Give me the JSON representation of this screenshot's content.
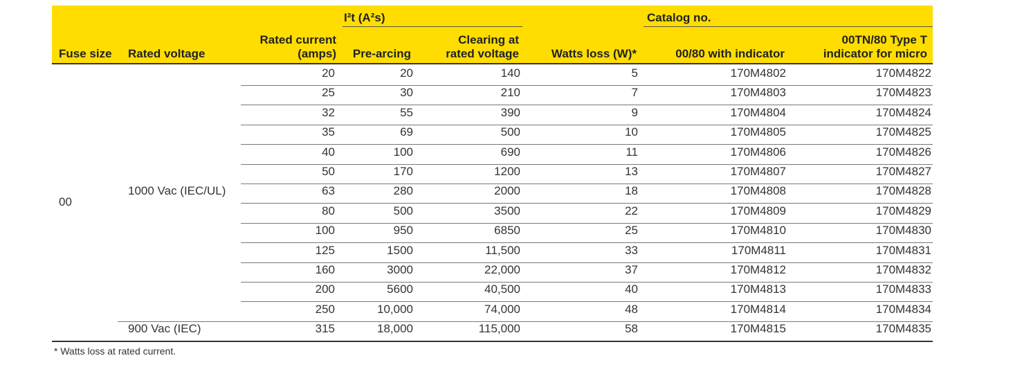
{
  "header": {
    "groups": [
      "I²t (A²s)",
      "Catalog no."
    ],
    "columns": [
      "Fuse size",
      "Rated voltage",
      "Rated current\n(amps)",
      "Pre-arcing",
      "Clearing at\nrated voltage",
      "Watts loss (W)*",
      "00/80 with indicator",
      "00TN/80 Type T\nindicator for micro"
    ]
  },
  "fuse_size": "00",
  "voltages": [
    "1000 Vac (IEC/UL)",
    "900 Vac (IEC)"
  ],
  "rows": [
    [
      "20",
      "20",
      "140",
      "5",
      "170M4802",
      "170M4822"
    ],
    [
      "25",
      "30",
      "210",
      "7",
      "170M4803",
      "170M4823"
    ],
    [
      "32",
      "55",
      "390",
      "9",
      "170M4804",
      "170M4824"
    ],
    [
      "35",
      "69",
      "500",
      "10",
      "170M4805",
      "170M4825"
    ],
    [
      "40",
      "100",
      "690",
      "11",
      "170M4806",
      "170M4826"
    ],
    [
      "50",
      "170",
      "1200",
      "13",
      "170M4807",
      "170M4827"
    ],
    [
      "63",
      "280",
      "2000",
      "18",
      "170M4808",
      "170M4828"
    ],
    [
      "80",
      "500",
      "3500",
      "22",
      "170M4809",
      "170M4829"
    ],
    [
      "100",
      "950",
      "6850",
      "25",
      "170M4810",
      "170M4830"
    ],
    [
      "125",
      "1500",
      "11,500",
      "33",
      "170M4811",
      "170M4831"
    ],
    [
      "160",
      "3000",
      "22,000",
      "37",
      "170M4812",
      "170M4832"
    ],
    [
      "200",
      "5600",
      "40,500",
      "40",
      "170M4813",
      "170M4833"
    ],
    [
      "250",
      "10,000",
      "74,000",
      "48",
      "170M4814",
      "170M4834"
    ],
    [
      "315",
      "18,000",
      "115,000",
      "58",
      "170M4815",
      "170M4835"
    ]
  ],
  "footnote": "* Watts loss at rated current."
}
